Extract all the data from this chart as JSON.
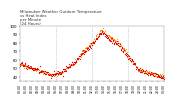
{
  "title": "Milwaukee Weather Outdoor Temperature\nvs Heat Index\nper Minute\n(24 Hours)",
  "title_color": "#333333",
  "title_fontsize": 2.8,
  "bg_color": "#ffffff",
  "plot_bg_color": "#ffffff",
  "grid_color": "#999999",
  "line_color_temp": "#dd0000",
  "line_color_heat": "#ff8800",
  "marker_size": 0.8,
  "ylim": [
    35,
    100
  ],
  "xlim": [
    0,
    1440
  ],
  "ylabel_fontsize": 2.8,
  "xlabel_fontsize": 2.2,
  "yticks": [
    40,
    50,
    60,
    70,
    80,
    90,
    100
  ],
  "ytick_labels": [
    "40",
    "50",
    "60",
    "70",
    "80",
    "90",
    "100"
  ],
  "xtick_step": 60,
  "vline_positions": [
    360,
    720,
    1080
  ],
  "vline_color": "#aaaaaa",
  "vline_style": "dotted",
  "seed": 17
}
